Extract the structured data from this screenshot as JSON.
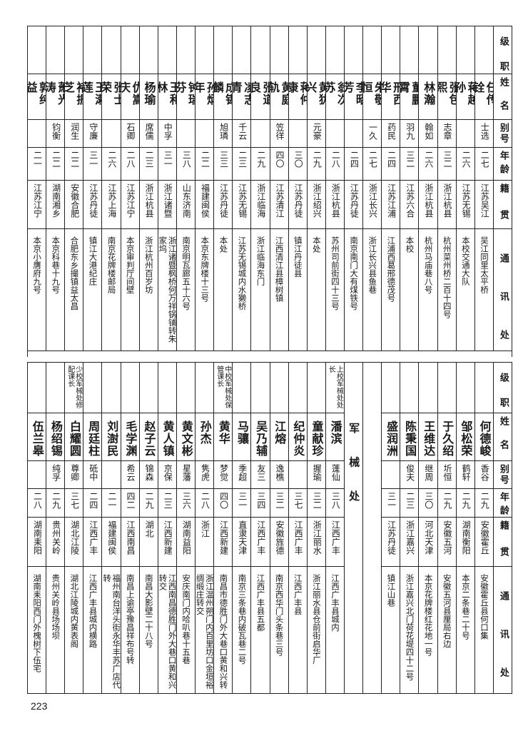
{
  "headers": {
    "rank": "级职",
    "name": "姓名",
    "alias": "别号",
    "age": "年龄",
    "origin": "籍贯",
    "address": "通讯处"
  },
  "top": {
    "rows": [
      {
        "rank": "",
        "name": "任传铨",
        "alias": "士选",
        "age": "二七",
        "origin": "江苏吴江",
        "address": "吴江同里太平桥"
      },
      {
        "rank": "",
        "name": "蒋越孙",
        "alias": "",
        "age": "二六",
        "origin": "江苏无锡",
        "address": "本校交通大队"
      },
      {
        "rank": "",
        "name": "张包熙",
        "alias": "志章",
        "age": "三二",
        "origin": "浙江杭县",
        "address": "杭州菜州桥二百十四号"
      },
      {
        "rank": "",
        "name": "林瀚",
        "alias": "翰如",
        "age": "二六",
        "origin": "浙江杭县",
        "address": "杭州马庙巷八号"
      },
      {
        "rank": "",
        "name": "董鹏霄",
        "alias": "羽九",
        "age": "三二",
        "origin": "江苏六合",
        "address": "本校"
      },
      {
        "rank": "",
        "name": "邢西华",
        "alias": "药民",
        "age": "二四",
        "origin": "江苏江浦",
        "address": "江浦西葛邢德茂号"
      },
      {
        "rank": "",
        "name": "朱敬恒",
        "alias": "一久",
        "age": "二七",
        "origin": "浙江长兴",
        "address": "浙江长兴县鱼巷"
      },
      {
        "rank": "",
        "name": "李昭芳",
        "alias": "",
        "age": "二四",
        "origin": "江苏丹徒",
        "address": "南京南门大有煤铁号"
      },
      {
        "rank": "",
        "name": "翁次苏",
        "alias": "",
        "age": "二八",
        "origin": "浙江杭县",
        "address": "苏州司前街四十三号"
      },
      {
        "rank": "",
        "name": "黄犹兴",
        "alias": "元豪",
        "age": "二九",
        "origin": "浙江绍兴",
        "address": "本处"
      },
      {
        "rank": "",
        "name": "蒋仲康",
        "alias": "",
        "age": "三〇",
        "origin": "江苏丹徒",
        "address": "镇江丹徒县"
      },
      {
        "rank": "",
        "name": "黄庭轨",
        "alias": "笠徉",
        "age": "四〇",
        "origin": "江苏清江",
        "address": "江西清江县樟树镇"
      },
      {
        "rank": "",
        "name": "张道良",
        "alias": "",
        "age": "二九",
        "origin": "浙江临海",
        "address": "浙江临海东门"
      },
      {
        "rank": "",
        "name": "凌志青",
        "alias": "千云",
        "age": "二三",
        "origin": "江苏无锡",
        "address": "江苏无锡城内水獭桥"
      },
      {
        "rank": "",
        "name": "成锡麟",
        "alias": "旭璘",
        "age": "三三",
        "origin": "江苏丹徒",
        "address": "本处"
      },
      {
        "rank": "",
        "name": "孙炳年",
        "alias": "",
        "age": "二二",
        "origin": "福建闽侯",
        "address": "本京东牌楼十三号"
      },
      {
        "rank": "",
        "name": "钟瑞芬",
        "alias": "",
        "age": "三八",
        "origin": "山东济南",
        "address": "南京明瓦廊五十六号"
      },
      {
        "rank": "",
        "name": "王和林",
        "alias": "中孚",
        "age": "三一",
        "origin": "浙江诸暨",
        "address": "浙江诸暨枫桥何万祥锅铺转朱家坞"
      },
      {
        "rank": "",
        "name": "杨瑜",
        "alias": "席儒",
        "age": "二三",
        "origin": "浙江杭县",
        "address": "浙江杭州百岁坊"
      },
      {
        "rank": "",
        "name": "仇嵩庆",
        "alias": "石卿",
        "age": "二八",
        "origin": "江苏江宁",
        "address": "本京审判厅间壁"
      },
      {
        "rank": "",
        "name": "张士荣",
        "alias": "",
        "age": "二六",
        "origin": "江苏上海",
        "address": "南京花牌楼邮局"
      },
      {
        "rank": "",
        "name": "王漱莲",
        "alias": "守廉",
        "age": "三一",
        "origin": "江苏丹徒",
        "address": "镇江大港纪庄"
      },
      {
        "rank": "",
        "name": "褚振芝",
        "alias": "润生",
        "age": "二二",
        "origin": "安徽合肥",
        "address": "合肥东乡撮镇益太昌"
      },
      {
        "rank": "",
        "name": "萧光涛",
        "alias": "钧衡",
        "age": "二二",
        "origin": "湖南湘乡",
        "address": "本京科巷十九号"
      },
      {
        "rank": "",
        "name": "郭纯益",
        "alias": "",
        "age": "二一",
        "origin": "江苏江宁",
        "address": "本京小膺府九号"
      }
    ]
  },
  "bottom": {
    "rows_before_section": [
      {
        "rank": "",
        "name": "何德峻",
        "alias": "香谷",
        "age": "二九",
        "origin": "安徽霍丘",
        "address": "安徽霍丘县何口集"
      },
      {
        "rank": "",
        "name": "邹松荣",
        "alias": "鹤轩",
        "age": "二九",
        "origin": "湖南衡阳",
        "address": "本京二条巷二十号"
      },
      {
        "rank": "",
        "name": "于久绍",
        "alias": "圻恒",
        "age": "二九",
        "origin": "安徽五河",
        "address": "安徽五河县厘局右边"
      },
      {
        "rank": "",
        "name": "王维达",
        "alias": "继周",
        "age": "三〇",
        "origin": "河北天津",
        "address": "本京花牌楼红花地一号"
      },
      {
        "rank": "",
        "name": "陈秉国",
        "alias": "俊夫",
        "age": "二三",
        "origin": "浙江嘉兴",
        "address": "浙江嘉兴北门荷花堤四十二号"
      },
      {
        "rank": "",
        "name": "盛润洲",
        "alias": "",
        "age": "三一",
        "origin": "江苏丹徒",
        "address": "镇江山巷"
      }
    ],
    "section_label": "军械处",
    "rows_after_section": [
      {
        "rank": "上校军械处处长",
        "name": "潘滨",
        "alias": "蓬仙",
        "age": "三八",
        "origin": "江西广丰",
        "address": "江西广丰县城内"
      },
      {
        "rank": "",
        "name": "童献珍",
        "alias": "握瑜",
        "age": "三二",
        "origin": "浙江丽水",
        "address": "浙江丽水县仓前街启华厂"
      },
      {
        "rank": "",
        "name": "纪仲炎",
        "alias": "",
        "age": "三七",
        "origin": "江西广丰",
        "address": "江西广丰县"
      },
      {
        "rank": "",
        "name": "江熔",
        "alias": "逸樵",
        "age": "三二",
        "origin": "安徽旌德",
        "address": "南京西华门头条巷三号"
      },
      {
        "rank": "",
        "name": "吴乃辅",
        "alias": "友三",
        "age": "三四",
        "origin": "江西广丰",
        "address": "江西广丰县五都"
      },
      {
        "rank": "",
        "name": "马骧",
        "alias": "季超",
        "age": "三一",
        "origin": "直隶天津",
        "address": "南京三条巷内破瓦巷二号"
      },
      {
        "rank": "中校军械处保管课长",
        "name": "黄华",
        "alias": "梦觉",
        "age": "四〇",
        "origin": "江西新建",
        "address": "南昌市德胜门外大巷口黄和兴转"
      },
      {
        "rank": "",
        "name": "孙杰",
        "alias": "隽虎",
        "age": "二八",
        "origin": "浙江",
        "address": "浙江温州朔门内百里坊口金垣裕绸缎庄转交"
      },
      {
        "rank": "",
        "name": "黄文彬",
        "alias": "星藩",
        "age": "三六",
        "origin": "湖南益阳",
        "address": "安庆南门内哈叭巷十五巷"
      },
      {
        "rank": "",
        "name": "黄人镇",
        "alias": "京保",
        "age": "二三",
        "origin": "江西新建",
        "address": "江西南昌德胜门外大巷口黄和兴转交"
      },
      {
        "rank": "",
        "name": "赵子云",
        "alias": "锦森",
        "age": "二九",
        "origin": "湖北",
        "address": "南昌大影壁二十八号"
      },
      {
        "rank": "",
        "name": "毛学渊",
        "alias": "希云",
        "age": "四二",
        "origin": "江西南昌",
        "address": "南昌上谕亭豫昌祥布号转"
      },
      {
        "rank": "",
        "name": "刘澍民",
        "alias": "",
        "age": "二一",
        "origin": "福建闽侯",
        "address": "福州南台洋头街永华丰苏广店代转"
      },
      {
        "rank": "",
        "name": "周廷柱",
        "alias": "砥中",
        "age": "二四",
        "origin": "江西广丰",
        "address": "江西广丰县城内横路"
      },
      {
        "rank": "少校军械处修配课长",
        "name": "白耀圆",
        "alias": "尊卿",
        "age": "三七",
        "origin": "湖北江陵",
        "address": "湖北江陵城内黄表阁"
      },
      {
        "rank": "",
        "name": "杨绍锡",
        "alias": "纯孚",
        "age": "二九",
        "origin": "贵州关岭",
        "address": "贵州关岭县场场坝"
      },
      {
        "rank": "",
        "name": "伍兰皋",
        "alias": "",
        "age": "二八",
        "origin": "湖南耒阳",
        "address": "湖南耒阳西门外槐树下伍宅"
      }
    ]
  },
  "page_number": "223"
}
